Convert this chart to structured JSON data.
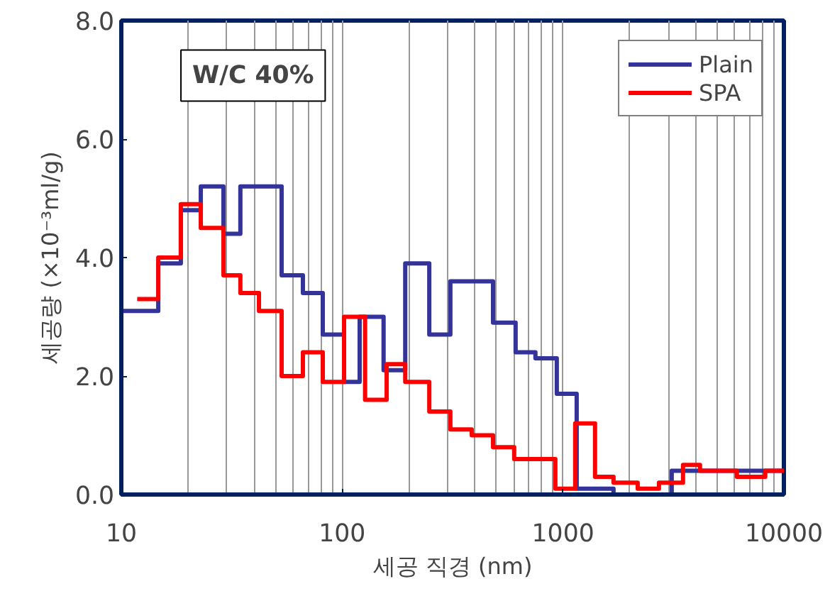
{
  "chart_data": {
    "type": "step",
    "xlabel": "세공 직경 (nm)",
    "ylabel": "세공량 (×10⁻³ml/g)",
    "log": "x",
    "xlim": [
      10,
      10000
    ],
    "xticks": [
      10,
      100,
      1000,
      10000
    ],
    "ylim": [
      0,
      8
    ],
    "yticks": [
      {
        "value": 0,
        "label": "0.0"
      },
      {
        "value": 2,
        "label": "2.0"
      },
      {
        "value": 4,
        "label": "4.0"
      },
      {
        "value": 6,
        "label": "6.0"
      },
      {
        "value": 8,
        "label": "8.0"
      }
    ],
    "grid": "x",
    "legend": "top right",
    "annotations": [
      "W/C 40%"
    ],
    "series": [
      {
        "name": "Plain",
        "color": "#333399",
        "x": [
          10,
          14.7,
          18.6,
          22.9,
          29.0,
          34.6,
          53.2,
          66.4,
          81.7,
          102,
          120,
          154,
          193,
          248,
          309,
          482,
          610,
          750,
          937,
          1153,
          1693,
          3105,
          10000
        ],
        "values": [
          3.1,
          3.9,
          4.8,
          5.2,
          4.4,
          5.2,
          3.7,
          3.4,
          2.7,
          1.9,
          3.0,
          2.1,
          3.9,
          2.7,
          3.6,
          2.9,
          2.4,
          2.3,
          1.7,
          0.1,
          0.0,
          0.4,
          0.4
        ]
      },
      {
        "name": "SPA",
        "color": "#ff0000",
        "x": [
          11.8,
          14.7,
          18.6,
          22.9,
          29.0,
          34.6,
          42.0,
          53.2,
          66.4,
          81.7,
          102,
          127,
          159,
          193,
          248,
          309,
          386,
          482,
          601,
          923,
          1135,
          1396,
          1693,
          2178,
          2719,
          3494,
          4171,
          6125,
          8235,
          10000
        ],
        "values": [
          3.3,
          4.0,
          4.9,
          4.5,
          3.7,
          3.4,
          3.1,
          2.0,
          2.4,
          1.9,
          3.0,
          1.6,
          2.2,
          1.9,
          1.4,
          1.1,
          1.0,
          0.8,
          0.6,
          0.1,
          1.2,
          0.3,
          0.2,
          0.1,
          0.2,
          0.5,
          0.4,
          0.3,
          0.4,
          0.4
        ]
      }
    ]
  }
}
